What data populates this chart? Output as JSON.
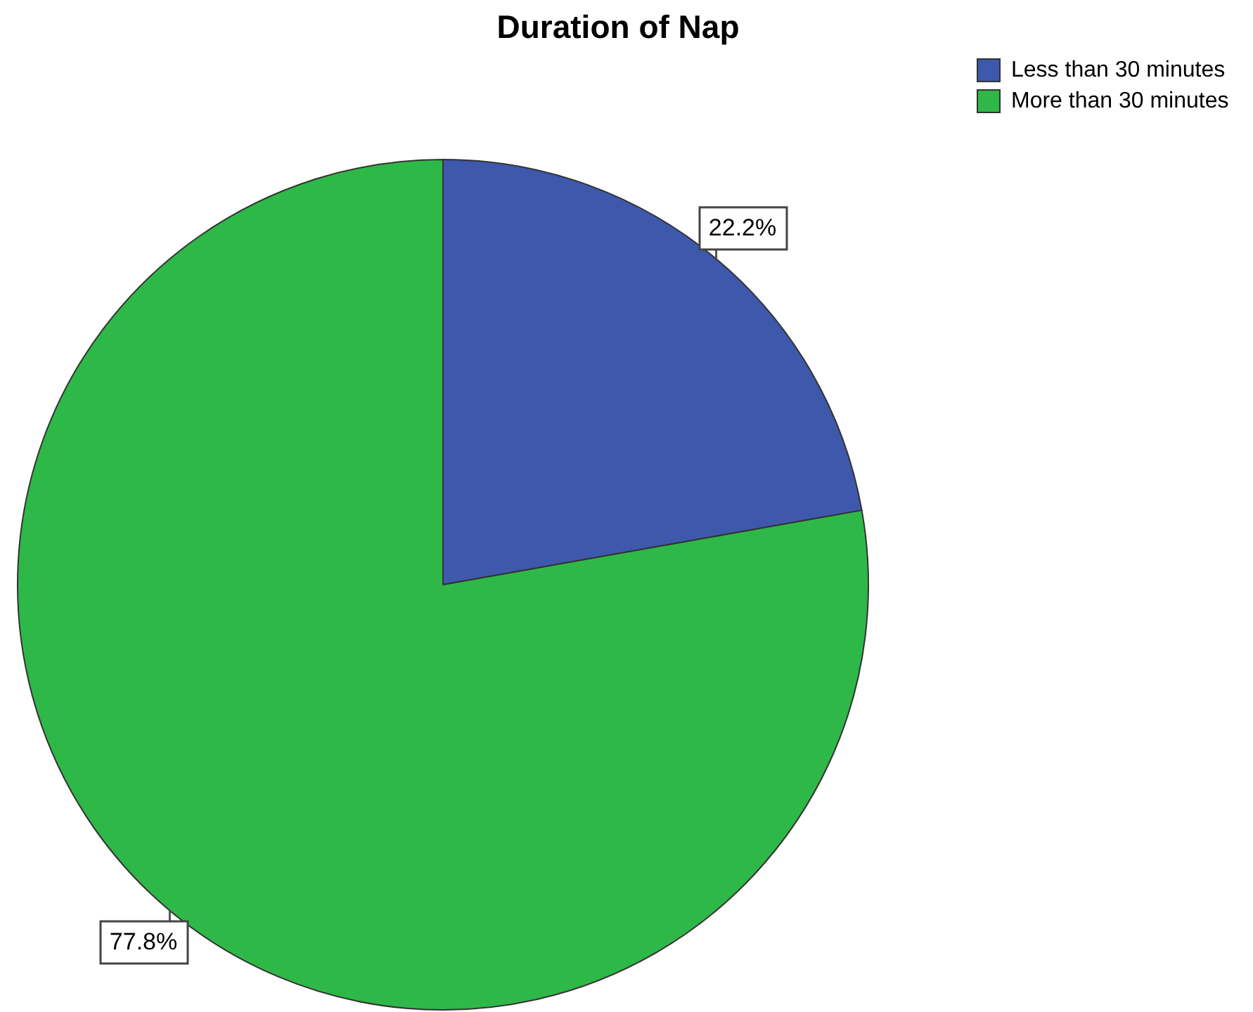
{
  "chart_data": {
    "type": "pie",
    "title": "Duration of Nap",
    "categories": [
      "Less than 30 minutes",
      "More than 30 minutes"
    ],
    "values": [
      22.2,
      77.8
    ],
    "colors": [
      "#3e58ac",
      "#2eb848"
    ],
    "value_labels": [
      "22.2%",
      "77.8%"
    ],
    "legend": "top right"
  }
}
